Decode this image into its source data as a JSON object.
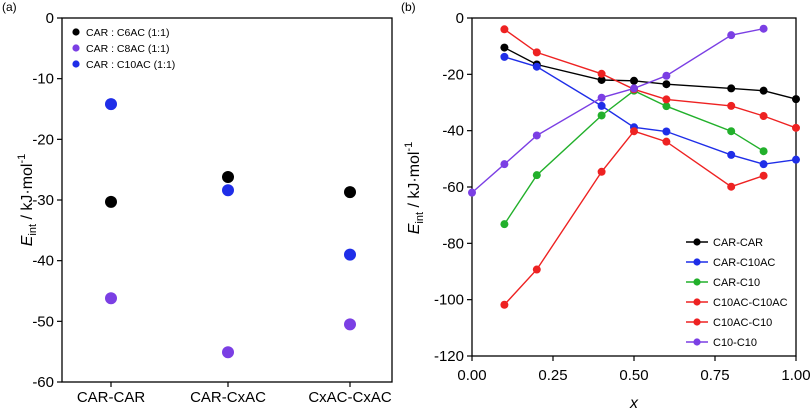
{
  "panel_letters": {
    "a": "(a)",
    "b": "(b)"
  },
  "ylabel_parts": {
    "e": "E",
    "sub": "int",
    "unit_pre": " / kJ·mol",
    "unit_sup": "-1"
  },
  "xlabel_b": "x",
  "chart_data": [
    {
      "id": "a",
      "type": "scatter",
      "title": "",
      "xlabel": "",
      "ylabel": "Eint / kJ·mol-1",
      "categories": [
        "CAR-CAR",
        "CAR-CxAC",
        "CxAC-CxAC"
      ],
      "ylim": [
        -60,
        0
      ],
      "yticks": [
        "0",
        "-10",
        "-20",
        "-30",
        "-40",
        "-50",
        "-60"
      ],
      "legend_position": "top-left",
      "series": [
        {
          "name": "CAR : C6AC (1:1)",
          "color": "#000000",
          "values": [
            -30.3,
            -26.2,
            -28.7
          ]
        },
        {
          "name": "CAR : C8AC (1:1)",
          "color": "#7b3fe4",
          "values": [
            -46.2,
            -55.1,
            -50.5
          ]
        },
        {
          "name": "CAR : C10AC (1:1)",
          "color": "#1f2ee8",
          "values": [
            -14.2,
            -28.4,
            -39.0
          ]
        }
      ]
    },
    {
      "id": "b",
      "type": "line",
      "title": "",
      "xlabel": "x",
      "ylabel": "Eint / kJ·mol-1",
      "xlim": [
        0,
        1
      ],
      "ylim": [
        -120,
        0
      ],
      "xticks": [
        "0.00",
        "0.25",
        "0.50",
        "0.75",
        "1.00"
      ],
      "yticks": [
        "0",
        "-20",
        "-40",
        "-60",
        "-80",
        "-100",
        "-120"
      ],
      "legend_position": "bottom-right",
      "series": [
        {
          "name": "CAR-CAR",
          "color": "#000000",
          "x": [
            0.1,
            0.2,
            0.4,
            0.5,
            0.6,
            0.8,
            0.9,
            1.0
          ],
          "y": [
            -10.5,
            -16.5,
            -22.0,
            -22.3,
            -23.5,
            -25.0,
            -25.8,
            -28.8
          ]
        },
        {
          "name": "CAR-C10AC",
          "color": "#1f2ee8",
          "x": [
            0.1,
            0.2,
            0.4,
            0.5,
            0.6,
            0.8,
            0.9,
            1.0
          ],
          "y": [
            -13.8,
            -17.3,
            -31.2,
            -38.8,
            -40.3,
            -48.6,
            -51.9,
            -50.3
          ]
        },
        {
          "name": "CAR-C10",
          "color": "#22b02b",
          "x": [
            0.1,
            0.2,
            0.4,
            0.5,
            0.6,
            0.8,
            0.9
          ],
          "y": [
            -73.2,
            -55.8,
            -34.6,
            -25.8,
            -31.3,
            -40.2,
            -47.3
          ]
        },
        {
          "name": "C10AC-C10AC",
          "color": "#ee2222",
          "x": [
            0.1,
            0.2,
            0.4,
            0.5,
            0.6,
            0.8,
            0.9,
            1.0
          ],
          "y": [
            -4.0,
            -12.2,
            -19.8,
            -25.3,
            -28.9,
            -31.2,
            -34.8,
            -39.0
          ]
        },
        {
          "name": "C10AC-C10",
          "color": "#ee2222",
          "x": [
            0.1,
            0.2,
            0.4,
            0.5,
            0.6,
            0.8,
            0.9
          ],
          "y": [
            -101.8,
            -89.3,
            -54.6,
            -40.2,
            -43.9,
            -59.9,
            -56.0
          ]
        },
        {
          "name": "C10-C10",
          "color": "#7b3fe4",
          "x": [
            0.0,
            0.1,
            0.2,
            0.4,
            0.5,
            0.6,
            0.8,
            0.9
          ],
          "y": [
            -62.0,
            -51.9,
            -41.7,
            -28.3,
            -25.0,
            -20.5,
            -6.1,
            -3.8
          ]
        }
      ]
    }
  ]
}
